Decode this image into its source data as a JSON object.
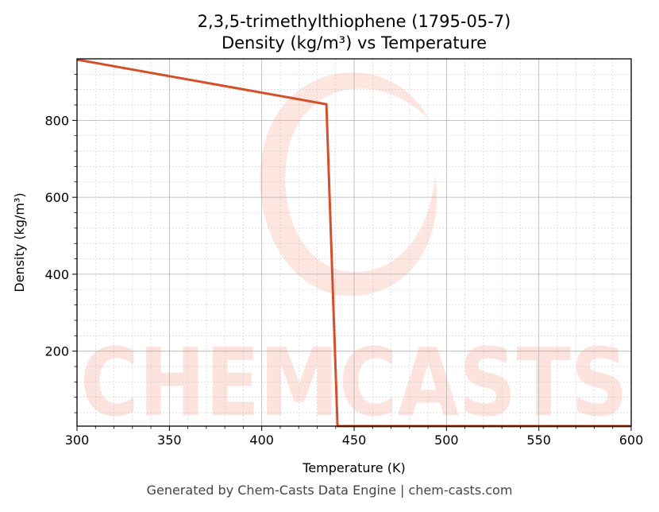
{
  "chart_data": {
    "type": "line",
    "title": "2,3,5-trimethylthiophene (1795-05-7)",
    "subtitle": "Density (kg/m³) vs Temperature",
    "xlabel": "Temperature (K)",
    "ylabel": "Density (kg/m³)",
    "xlim": [
      300,
      600
    ],
    "ylim": [
      5,
      960
    ],
    "xticks": [
      300,
      350,
      400,
      450,
      500,
      550,
      600
    ],
    "yticks": [
      200,
      400,
      600,
      800
    ],
    "grid": true,
    "series": [
      {
        "color": "#d4502a",
        "x": [
          300,
          435,
          441,
          600
        ],
        "y": [
          958,
          842,
          5,
          5
        ]
      }
    ]
  },
  "watermark": {
    "text": "CHEMCASTS",
    "color": "#fde0db"
  },
  "footer": {
    "text": "Generated by Chem-Casts Data Engine | chem-casts.com"
  }
}
